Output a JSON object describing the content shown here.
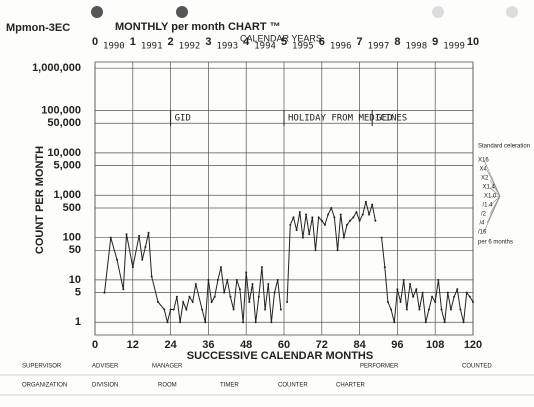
{
  "chart_data": {
    "type": "line",
    "title": "MONTHLY per month CHART ™",
    "chart_id": "Mpmon-3EC",
    "top_axis_label": "CALENDAR YEARS",
    "years": [
      "1990",
      "1991",
      "1992",
      "1993",
      "1994",
      "1995",
      "1996",
      "1997",
      "1998",
      "1999"
    ],
    "year_ticks": [
      0,
      1,
      2,
      3,
      4,
      5,
      6,
      7,
      8,
      9,
      10
    ],
    "xlabel": "SUCCESSIVE CALENDAR MONTHS",
    "ylabel": "COUNT PER MONTH",
    "log_y": true,
    "grid": true,
    "xlim": [
      0,
      120
    ],
    "xticks": [
      0,
      12,
      24,
      36,
      48,
      60,
      72,
      84,
      96,
      108,
      120
    ],
    "ylim": [
      0.5,
      1400000
    ],
    "yticks": [
      1,
      5,
      10,
      50,
      100,
      500,
      {
        "value": 1000,
        "label": "1,000"
      },
      {
        "value": 5000,
        "label": "5,000"
      },
      {
        "value": 10000,
        "label": "10,000"
      },
      {
        "value": 50000,
        "label": "50,000"
      },
      {
        "value": 100000,
        "label": "100,000"
      },
      {
        "value": 1000000,
        "label": "1,000,000"
      }
    ],
    "annotations": [
      {
        "text": "GID",
        "x": 24
      },
      {
        "text": "HOLIDAY FROM MEDICINES",
        "x": 60
      },
      {
        "text": "GED",
        "x": 88
      }
    ],
    "celeration_title": "Standard celeration",
    "celeration_labels": [
      "X16",
      "X4",
      "X2",
      "X1.4",
      "X1.0",
      "/1.4",
      "/2",
      "/4",
      "/16"
    ],
    "celeration_note": "per 6 months",
    "form_labels": [
      "SUPERVISOR",
      "ADVISER",
      "MANAGER",
      "PERFORMER",
      "COUNTED",
      "ORGANIZATION",
      "DIVISION",
      "ROOM",
      "TIMER",
      "COUNTER",
      "CHARTER"
    ],
    "series": [
      {
        "color": "#222222",
        "x": [
          3,
          5,
          7,
          9,
          10,
          12,
          14,
          15,
          16,
          17,
          18,
          20,
          22,
          23,
          24,
          25,
          26,
          27,
          28,
          29,
          30,
          31,
          32,
          34,
          35,
          36,
          37,
          38,
          39,
          40,
          41,
          42,
          43,
          44,
          45,
          46,
          47,
          48,
          49,
          50,
          51,
          52,
          53,
          54,
          55,
          56,
          57,
          58,
          59,
          60,
          61,
          62,
          63,
          64,
          65,
          66,
          67,
          68,
          69,
          70,
          71,
          72,
          73,
          74,
          75,
          76,
          77,
          78,
          79,
          80,
          81,
          82,
          83,
          84,
          85,
          86,
          87,
          88,
          89,
          90,
          91,
          92,
          93,
          94,
          95,
          96,
          97,
          98,
          99,
          100,
          101,
          102,
          103,
          104,
          105,
          106,
          107,
          108,
          109,
          110,
          111,
          112,
          113,
          114,
          115,
          116,
          117,
          118,
          119,
          120
        ],
        "values": [
          5,
          100,
          30,
          6,
          120,
          20,
          110,
          30,
          60,
          130,
          12,
          3,
          2,
          1,
          2,
          2,
          4,
          1,
          3,
          2,
          4,
          3,
          8,
          2,
          1,
          10,
          3,
          4,
          10,
          20,
          5,
          10,
          4,
          2,
          10,
          6,
          1,
          15,
          3,
          8,
          1,
          4,
          20,
          2,
          8,
          1,
          5,
          10,
          2,
          null,
          3,
          200,
          300,
          150,
          400,
          100,
          350,
          120,
          300,
          50,
          300,
          250,
          200,
          350,
          500,
          300,
          50,
          350,
          100,
          200,
          250,
          300,
          400,
          250,
          350,
          700,
          350,
          600,
          250,
          null,
          100,
          20,
          3,
          2,
          1,
          6,
          3,
          10,
          2,
          8,
          4,
          6,
          2,
          5,
          1,
          2,
          4,
          3,
          10,
          2,
          1,
          5,
          2,
          4,
          6,
          2,
          1,
          5,
          4,
          3
        ]
      }
    ]
  }
}
